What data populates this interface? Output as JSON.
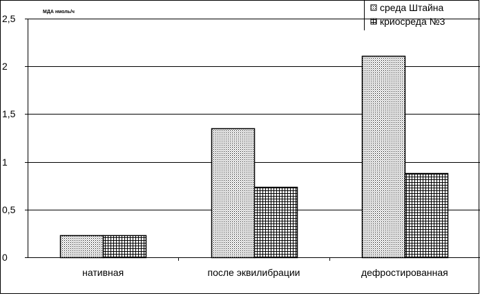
{
  "chart_data": {
    "type": "bar",
    "title": "",
    "xlabel": "",
    "ylabel": "МДА нмоль/ч",
    "ylim": [
      0,
      2.5
    ],
    "ytick_labels": [
      "0",
      "0,5",
      "1",
      "1,5",
      "2",
      "2,5"
    ],
    "yticks": [
      0,
      0.5,
      1,
      1.5,
      2,
      2.5
    ],
    "grid": true,
    "legend_position": "top-right",
    "categories": [
      "нативная",
      "после эквилибрации",
      "дефростированная"
    ],
    "series": [
      {
        "name": "среда Штайна",
        "values": [
          0.23,
          1.35,
          2.11
        ],
        "pattern": "dots"
      },
      {
        "name": "криосреда №3",
        "values": [
          0.23,
          0.74,
          0.88
        ],
        "pattern": "grid"
      }
    ],
    "colors": {
      "bar_fill": "#ffffff",
      "bar_stroke": "#000000",
      "pattern_ink": "#000000"
    }
  }
}
